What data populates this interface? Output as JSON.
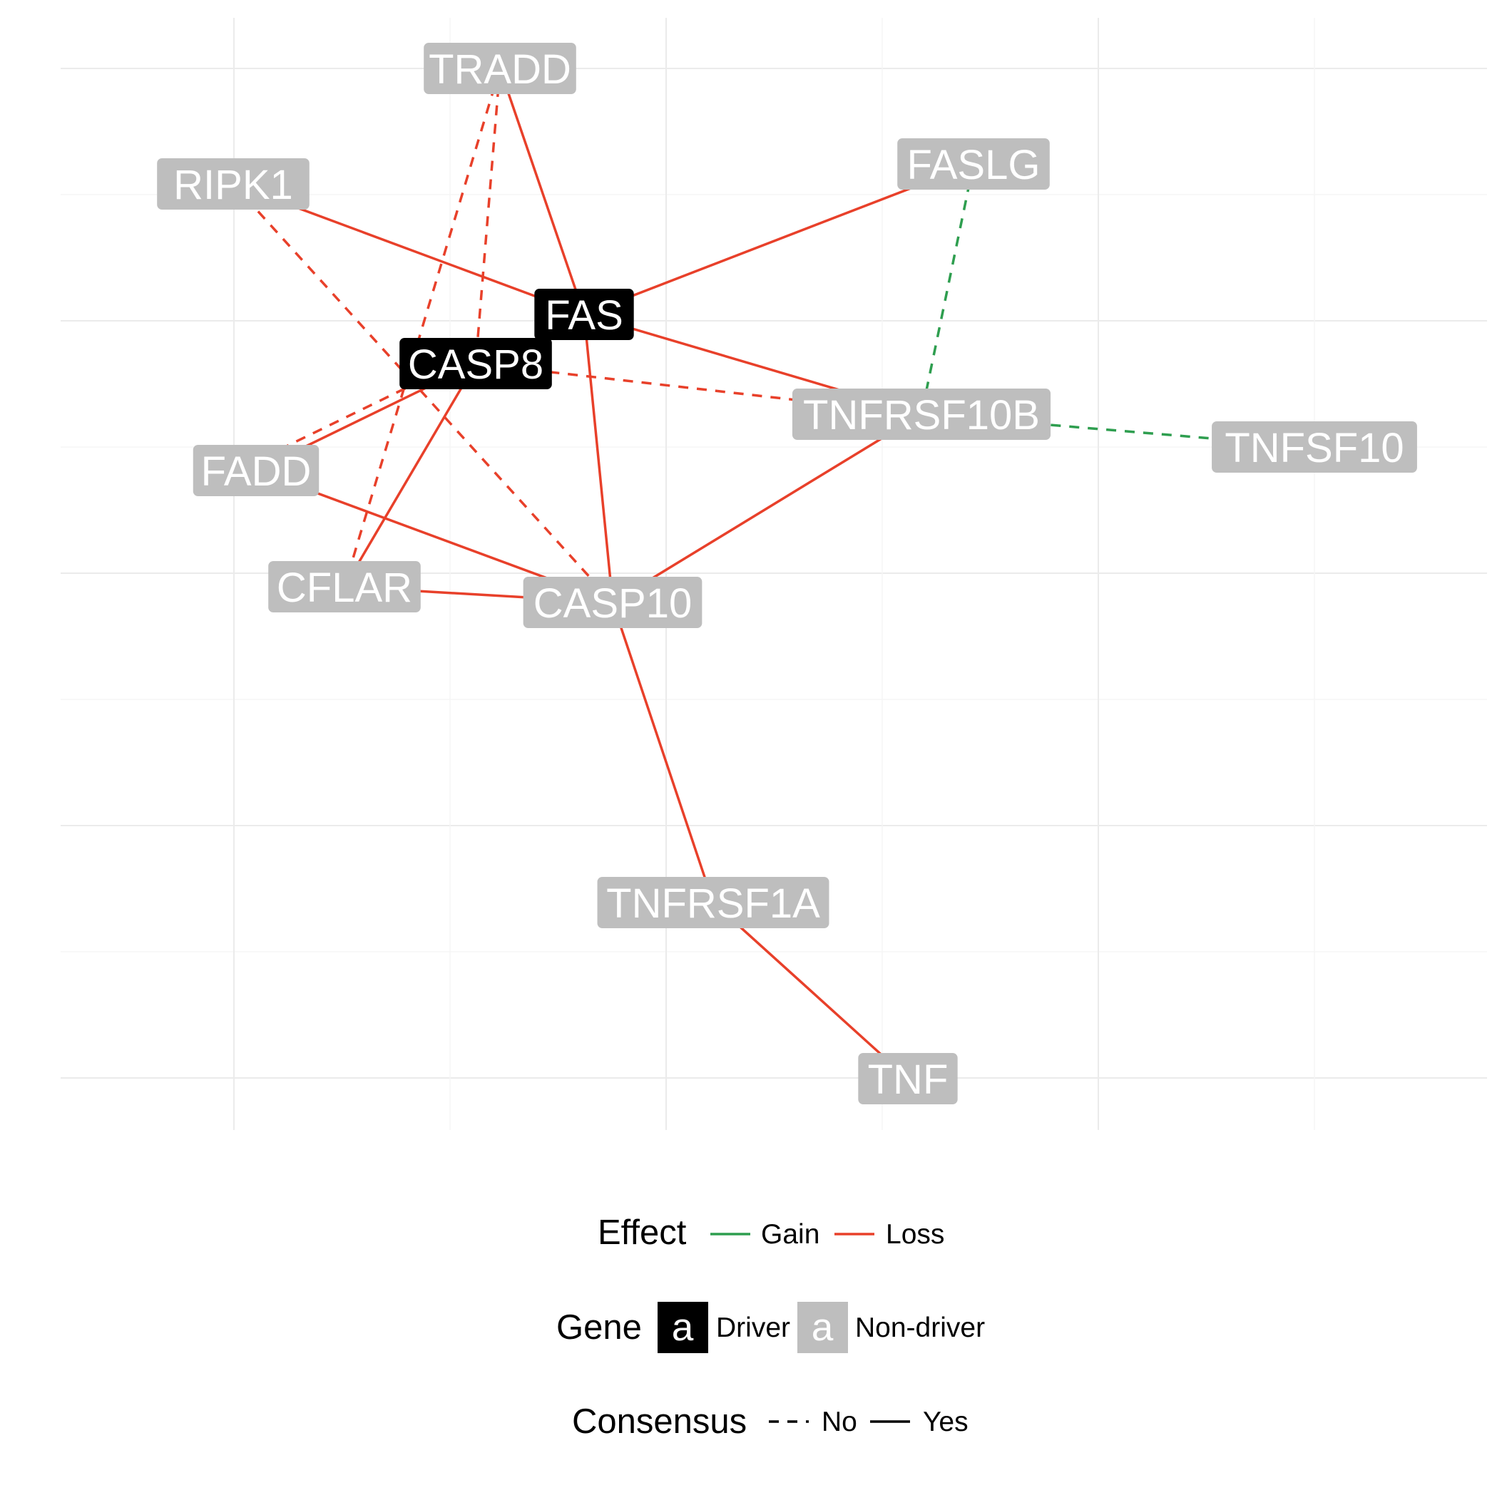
{
  "colors": {
    "gain": "#2e9e4f",
    "loss": "#e8402a",
    "driver_fill": "#000000",
    "driver_text": "#ffffff",
    "nondriver_fill": "#bebebe",
    "nondriver_text": "#ffffff"
  },
  "nodes": [
    {
      "id": "TRADD",
      "label": "TRADD",
      "type": "nondriver"
    },
    {
      "id": "FASLG",
      "label": "FASLG",
      "type": "nondriver"
    },
    {
      "id": "RIPK1",
      "label": "RIPK1",
      "type": "nondriver"
    },
    {
      "id": "FAS",
      "label": "FAS",
      "type": "driver"
    },
    {
      "id": "CASP8",
      "label": "CASP8",
      "type": "driver"
    },
    {
      "id": "TNFRSF10B",
      "label": "TNFRSF10B",
      "type": "nondriver"
    },
    {
      "id": "TNFSF10",
      "label": "TNFSF10",
      "type": "nondriver"
    },
    {
      "id": "FADD",
      "label": "FADD",
      "type": "nondriver"
    },
    {
      "id": "CFLAR",
      "label": "CFLAR",
      "type": "nondriver"
    },
    {
      "id": "CASP10",
      "label": "CASP10",
      "type": "nondriver"
    },
    {
      "id": "TNFRSF1A",
      "label": "TNFRSF1A",
      "type": "nondriver"
    },
    {
      "id": "TNF",
      "label": "TNF",
      "type": "nondriver"
    }
  ],
  "edges": [
    {
      "source": "TRADD",
      "target": "FAS",
      "effect": "Loss",
      "consensus": "Yes"
    },
    {
      "source": "TRADD",
      "target": "CASP8",
      "effect": "Loss",
      "consensus": "No"
    },
    {
      "source": "RIPK1",
      "target": "FAS",
      "effect": "Loss",
      "consensus": "Yes"
    },
    {
      "source": "RIPK1",
      "target": "CASP10",
      "effect": "Loss",
      "consensus": "No"
    },
    {
      "source": "FASLG",
      "target": "FAS",
      "effect": "Loss",
      "consensus": "Yes"
    },
    {
      "source": "FASLG",
      "target": "TNFRSF10B",
      "effect": "Gain",
      "consensus": "No"
    },
    {
      "source": "FAS",
      "target": "TNFRSF10B",
      "effect": "Loss",
      "consensus": "Yes"
    },
    {
      "source": "FAS",
      "target": "CASP10",
      "effect": "Loss",
      "consensus": "Yes"
    },
    {
      "source": "CASP8",
      "target": "TNFRSF10B",
      "effect": "Loss",
      "consensus": "No"
    },
    {
      "source": "CASP8",
      "target": "FADD",
      "effect": "Loss",
      "consensus": "Yes"
    },
    {
      "source": "CASP8",
      "target": "FADD",
      "effect": "Loss",
      "consensus": "No"
    },
    {
      "source": "CASP8",
      "target": "CFLAR",
      "effect": "Loss",
      "consensus": "Yes"
    },
    {
      "source": "TRADD",
      "target": "CFLAR",
      "effect": "Loss",
      "consensus": "No"
    },
    {
      "source": "TNFRSF10B",
      "target": "TNFSF10",
      "effect": "Gain",
      "consensus": "No"
    },
    {
      "source": "TNFRSF10B",
      "target": "CASP10",
      "effect": "Loss",
      "consensus": "Yes"
    },
    {
      "source": "FADD",
      "target": "CASP10",
      "effect": "Loss",
      "consensus": "Yes"
    },
    {
      "source": "CFLAR",
      "target": "CASP10",
      "effect": "Loss",
      "consensus": "Yes"
    },
    {
      "source": "CASP10",
      "target": "TNFRSF1A",
      "effect": "Loss",
      "consensus": "Yes"
    },
    {
      "source": "TNFRSF1A",
      "target": "TNF",
      "effect": "Loss",
      "consensus": "Yes"
    }
  ],
  "legend": {
    "effect": {
      "title": "Effect",
      "items": [
        {
          "key": "gain",
          "label": "Gain"
        },
        {
          "key": "loss",
          "label": "Loss"
        }
      ]
    },
    "gene": {
      "title": "Gene",
      "swatch_glyph": "a",
      "items": [
        {
          "key": "driver",
          "label": "Driver"
        },
        {
          "key": "nondriver",
          "label": "Non-driver"
        }
      ]
    },
    "consensus": {
      "title": "Consensus",
      "items": [
        {
          "key": "no",
          "label": "No"
        },
        {
          "key": "yes",
          "label": "Yes"
        }
      ]
    }
  }
}
